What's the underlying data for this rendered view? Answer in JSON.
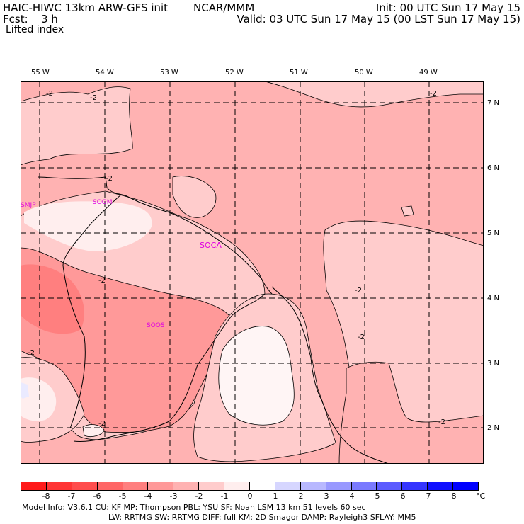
{
  "header": {
    "model_line": "HAIC-HIWC 13km ARW-GFS init",
    "org": "NCAR/MMM",
    "fcst_label": "Fcst:",
    "fcst_value": "3 h",
    "init": "Init: 00 UTC Sun 17 May 15",
    "valid": "Valid: 03 UTC Sun 17 May 15 (00 LST Sun 17 May 15)",
    "field": "Lifted index"
  },
  "map": {
    "lon_labels": [
      "55 W",
      "54 W",
      "53 W",
      "52 W",
      "51 W",
      "50 W",
      "49 W"
    ],
    "lat_labels": [
      "7 N",
      "6 N",
      "5 N",
      "4 N",
      "3 N",
      "2 N"
    ],
    "stations": [
      "SMJP",
      "SOGM",
      "SOCA",
      "SOOS"
    ],
    "contour_labels": [
      "-2",
      "-2",
      "-2",
      "-2",
      "-2",
      "-2",
      "-2",
      "-2",
      "-2",
      "-2"
    ]
  },
  "colorbar": {
    "labels": [
      "-8",
      "-7",
      "-6",
      "-5",
      "-4",
      "-3",
      "-2",
      "-1",
      "0",
      "1",
      "2",
      "3",
      "4",
      "5",
      "6",
      "7",
      "8"
    ],
    "unit": "°C",
    "colors": [
      "#ff1a1a",
      "#ff3535",
      "#ff4d4d",
      "#ff6666",
      "#ff7f7f",
      "#ff9999",
      "#ffb2b2",
      "#ffcccc",
      "#ffeeee",
      "#ffffff",
      "#d6d6ff",
      "#b8b8ff",
      "#9999ff",
      "#7a7aff",
      "#5c5cff",
      "#3535ff",
      "#1010ff",
      "#0000ff"
    ]
  },
  "footer": {
    "line1": "Model Info: V3.6.1     CU: KF        MP: Thompson      PBL: YSU        SF: Noah LSM     13 km    51 levels   60 sec",
    "line2": "LW: RRTMG    SW: RRTMG   DIFF: full    KM: 2D Smagor  DAMP: Rayleigh3  SFLAY: MM5"
  }
}
